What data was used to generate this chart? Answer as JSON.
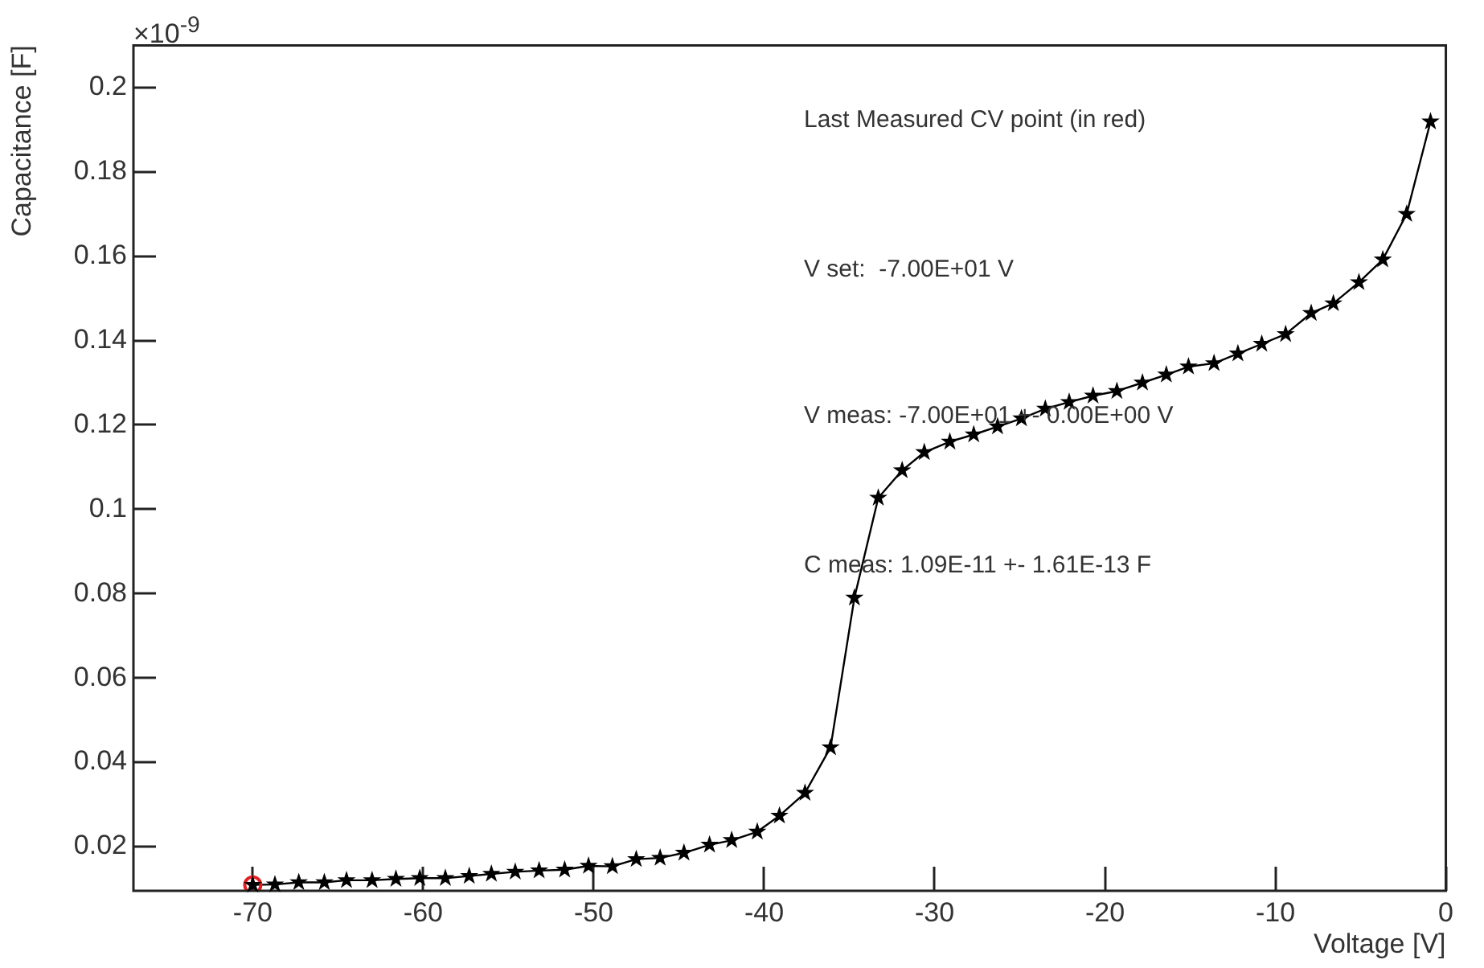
{
  "chart_data": {
    "type": "line",
    "xlabel": "Voltage [V]",
    "ylabel": "Capacitance [F]",
    "xlim": [
      -77,
      0
    ],
    "xticks": [
      -70,
      -60,
      -50,
      -40,
      -30,
      -20,
      -10,
      0
    ],
    "ylim": [
      0.0095,
      0.21
    ],
    "yticks": [
      0.02,
      0.04,
      0.06,
      0.08,
      0.1,
      0.12,
      0.14,
      0.16,
      0.18,
      0.2
    ],
    "grid": false,
    "legend": false,
    "series": [
      {
        "color": "#000000",
        "marker": "star",
        "x": [
          -70,
          -68.7,
          -67.3,
          -65.8,
          -64.5,
          -63.0,
          -61.6,
          -60.2,
          -58.7,
          -57.3,
          -56.0,
          -54.6,
          -53.2,
          -51.7,
          -50.3,
          -48.9,
          -47.5,
          -46.1,
          -44.7,
          -43.2,
          -41.9,
          -40.4,
          -39.1,
          -37.6,
          -36.1,
          -34.7,
          -33.3,
          -31.9,
          -30.6,
          -29.1,
          -27.7,
          -26.3,
          -24.9,
          -23.5,
          -22.1,
          -20.7,
          -19.3,
          -17.8,
          -16.4,
          -15.1,
          -13.6,
          -12.2,
          -10.8,
          -9.4,
          -7.9,
          -6.6,
          -5.1,
          -3.7,
          -2.3,
          -0.9
        ],
        "values": [
          0.0109,
          0.011,
          0.0115,
          0.0115,
          0.012,
          0.012,
          0.0123,
          0.0125,
          0.0125,
          0.013,
          0.0135,
          0.014,
          0.0143,
          0.0145,
          0.0154,
          0.0153,
          0.017,
          0.0173,
          0.0185,
          0.0204,
          0.0215,
          0.0235,
          0.0273,
          0.0327,
          0.0435,
          0.079,
          0.1027,
          0.1092,
          0.1135,
          0.116,
          0.1177,
          0.1196,
          0.1215,
          0.1238,
          0.1254,
          0.1269,
          0.128,
          0.13,
          0.1319,
          0.1338,
          0.1346,
          0.1369,
          0.1392,
          0.1415,
          0.1465,
          0.1488,
          0.1538,
          0.1592,
          0.17,
          0.1919
        ]
      },
      {
        "type": "scatter",
        "color": "#e02020",
        "marker": "circle",
        "x": [
          -70
        ],
        "values": [
          0.0109
        ]
      }
    ],
    "annotations": [
      "×10$^{-9}$",
      "Last Measured CV point (in red)",
      "V set:  -7.00E+01 V",
      "V meas: -7.00E+01 +- 0.00E+00 V",
      "C meas: 1.09E-11 +- 1.61E-13 F"
    ]
  }
}
